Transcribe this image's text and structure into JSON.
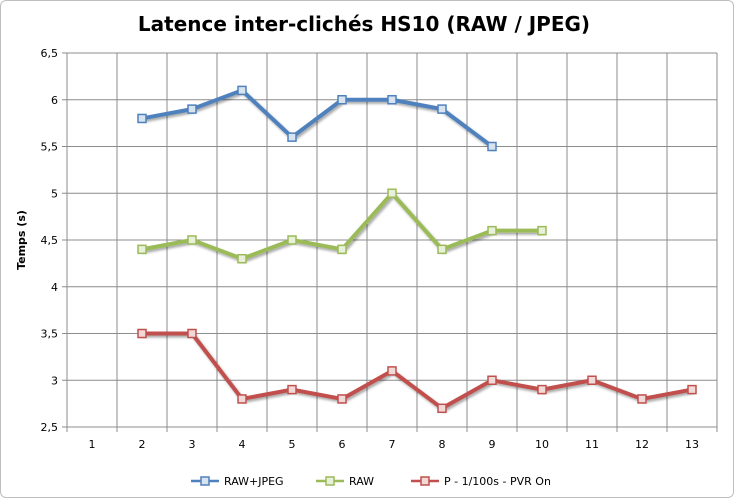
{
  "chart_data": {
    "type": "line",
    "title": "Latence inter-clichés HS10 (RAW / JPEG)",
    "ylabel": "Temps  (s)",
    "xlabel": "",
    "ylim": [
      2.5,
      6.5
    ],
    "ytick_step": 0.5,
    "yticks": [
      "2,5",
      "3",
      "3,5",
      "4",
      "4,5",
      "5",
      "5,5",
      "6",
      "6,5"
    ],
    "categories": [
      "1",
      "2",
      "3",
      "4",
      "5",
      "6",
      "7",
      "8",
      "9",
      "10",
      "11",
      "12",
      "13"
    ],
    "grid": true,
    "legend_position": "bottom",
    "series": [
      {
        "name": "RAW+JPEG",
        "color": "#4f81bd",
        "x": [
          2,
          3,
          4,
          5,
          6,
          7,
          8,
          9
        ],
        "values": [
          5.8,
          5.9,
          6.1,
          5.6,
          6.0,
          6.0,
          5.9,
          5.5
        ]
      },
      {
        "name": "RAW",
        "color": "#9bbb59",
        "x": [
          2,
          3,
          4,
          5,
          6,
          7,
          8,
          9,
          10
        ],
        "values": [
          4.4,
          4.5,
          4.3,
          4.5,
          4.4,
          5.0,
          4.4,
          4.6,
          4.6
        ]
      },
      {
        "name": "P - 1/100s - PVR On",
        "color": "#c0504d",
        "x": [
          2,
          3,
          4,
          5,
          6,
          7,
          8,
          9,
          10,
          11,
          12,
          13
        ],
        "values": [
          3.5,
          3.5,
          2.8,
          2.9,
          2.8,
          3.1,
          2.7,
          3.0,
          2.9,
          3.0,
          2.8,
          2.9
        ]
      }
    ]
  }
}
